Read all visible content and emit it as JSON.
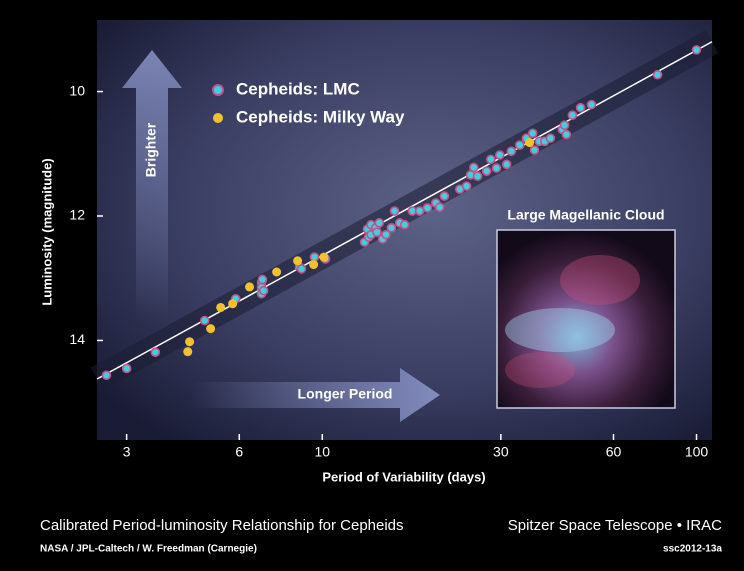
{
  "chart_data": {
    "type": "scatter",
    "x_label": "Period of Variability (days)",
    "y_label": "Luminosity (magnitude)",
    "x_scale": "log",
    "xlim": [
      2.5,
      110
    ],
    "xticks": [
      3,
      6,
      10,
      30,
      60,
      100
    ],
    "ylim": [
      15.6,
      8.85
    ],
    "yticks": [
      10,
      12,
      14
    ],
    "series": [
      {
        "name": "Cepheids: LMC",
        "color": "#3fd0e0",
        "edge_color": "#c8508a",
        "x": [
          2.65,
          3.0,
          3.58,
          4.85,
          5.87,
          6.88,
          6.88,
          6.88,
          6.92,
          6.97,
          8.69,
          8.8,
          9.53,
          10.2,
          12.97,
          13.2,
          13.3,
          13.5,
          13.5,
          13.9,
          14.0,
          14.2,
          14.5,
          14.8,
          15.3,
          16.1,
          16.6,
          17.4,
          18.2,
          19.1,
          20.1,
          20.6,
          21.2,
          23.3,
          24.3,
          24.9,
          25.4,
          26.0,
          27.5,
          28.2,
          29.2,
          29.8,
          31.1,
          32.0,
          33.7,
          35.1,
          36.5,
          36.9,
          38.0,
          39.3,
          40.7,
          43.8,
          44.4,
          44.9,
          46.6,
          49.0,
          52.4,
          78.7,
          100,
          15.6
        ],
        "values": [
          14.56,
          14.45,
          14.19,
          13.68,
          13.33,
          13.07,
          13.15,
          13.25,
          13.02,
          13.2,
          12.82,
          12.85,
          12.66,
          12.69,
          12.42,
          12.21,
          12.34,
          12.14,
          12.3,
          12.19,
          12.26,
          12.11,
          12.37,
          12.3,
          12.19,
          12.11,
          12.14,
          11.92,
          11.92,
          11.87,
          11.79,
          11.86,
          11.68,
          11.57,
          11.52,
          11.34,
          11.22,
          11.36,
          11.28,
          11.09,
          11.23,
          11.02,
          11.17,
          10.96,
          10.86,
          10.75,
          10.67,
          10.94,
          10.8,
          10.8,
          10.75,
          10.61,
          10.54,
          10.69,
          10.38,
          10.26,
          10.21,
          9.73,
          9.33,
          11.92
        ]
      },
      {
        "name": "Cepheids: Milky Way",
        "color": "#f2c22e",
        "x": [
          4.37,
          4.42,
          5.03,
          5.35,
          5.76,
          6.39,
          7.55,
          8.59,
          9.48,
          10.1,
          35.8
        ],
        "values": [
          14.18,
          14.02,
          13.81,
          13.47,
          13.41,
          13.14,
          12.9,
          12.72,
          12.78,
          12.66,
          10.82
        ]
      }
    ],
    "fit": {
      "x": [
        2.5,
        110
      ],
      "values": [
        14.62,
        9.2
      ],
      "color": "#ffffff"
    },
    "annotations": {
      "up_arrow": "Brighter",
      "right_arrow": "Longer Period",
      "inset_title": "Large Magellanic Cloud"
    }
  },
  "footer": {
    "title": "Calibrated Period-luminosity Relationship for Cepheids",
    "credit": "NASA / JPL-Caltech / W. Freedman (Carnegie)",
    "mission": "Spitzer Space Telescope • IRAC",
    "id": "ssc2012-13a"
  }
}
